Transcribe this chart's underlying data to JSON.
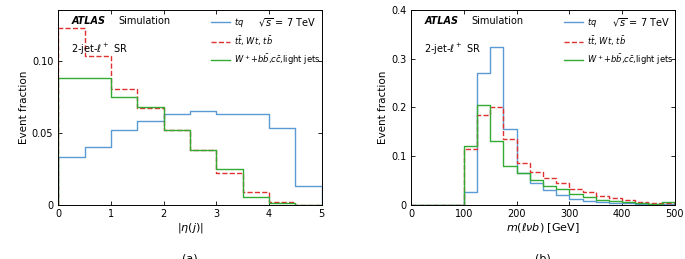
{
  "panel_a": {
    "xlabel": "$|\\eta(j)|$",
    "ylabel": "Event fraction",
    "xlim": [
      0,
      5
    ],
    "ylim": [
      0,
      0.135
    ],
    "yticks": [
      0,
      0.05,
      0.1
    ],
    "yticklabels": [
      "0",
      "0.05",
      "0.10"
    ],
    "xticks": [
      0,
      1,
      2,
      3,
      4,
      5
    ],
    "label": "(a)",
    "bin_edges": [
      0.0,
      0.5,
      1.0,
      1.5,
      2.0,
      2.5,
      3.0,
      3.5,
      4.0,
      4.5,
      5.0
    ],
    "tq": [
      0.033,
      0.04,
      0.052,
      0.058,
      0.063,
      0.065,
      0.063,
      0.063,
      0.053,
      0.013
    ],
    "ttbar": [
      0.123,
      0.103,
      0.08,
      0.067,
      0.052,
      0.038,
      0.022,
      0.009,
      0.002,
      0.0
    ],
    "wjets": [
      0.088,
      0.088,
      0.075,
      0.068,
      0.052,
      0.038,
      0.025,
      0.005,
      0.001,
      0.0
    ],
    "color_tq": "#5b9bd5",
    "color_ttbar": "#e03030",
    "color_wjets": "#33aa33"
  },
  "panel_b": {
    "xlabel": "$m(\\ell\\nu b)$ [GeV]",
    "ylabel": "Event fraction",
    "xlim": [
      0,
      500
    ],
    "ylim": [
      0,
      0.4
    ],
    "yticks": [
      0,
      0.1,
      0.2,
      0.3,
      0.4
    ],
    "yticklabels": [
      "0",
      "0.1",
      "0.2",
      "0.3",
      "0.4"
    ],
    "xticks": [
      0,
      100,
      200,
      300,
      400,
      500
    ],
    "label": "(b)",
    "bin_edges": [
      0,
      25,
      50,
      75,
      100,
      125,
      150,
      175,
      200,
      225,
      250,
      275,
      300,
      325,
      350,
      375,
      400,
      425,
      450,
      475,
      500
    ],
    "tq": [
      0.0,
      0.0,
      0.0,
      0.0,
      0.025,
      0.27,
      0.325,
      0.155,
      0.065,
      0.045,
      0.03,
      0.02,
      0.012,
      0.008,
      0.005,
      0.004,
      0.003,
      0.002,
      0.001,
      0.001
    ],
    "ttbar": [
      0.0,
      0.0,
      0.0,
      0.0,
      0.115,
      0.185,
      0.2,
      0.135,
      0.085,
      0.067,
      0.055,
      0.045,
      0.033,
      0.025,
      0.018,
      0.013,
      0.009,
      0.006,
      0.004,
      0.003
    ],
    "wjets": [
      0.0,
      0.0,
      0.0,
      0.0,
      0.12,
      0.205,
      0.13,
      0.08,
      0.065,
      0.05,
      0.038,
      0.032,
      0.022,
      0.015,
      0.01,
      0.007,
      0.005,
      0.003,
      0.002,
      0.005
    ],
    "color_tq": "#5b9bd5",
    "color_ttbar": "#e03030",
    "color_wjets": "#33aa33"
  }
}
